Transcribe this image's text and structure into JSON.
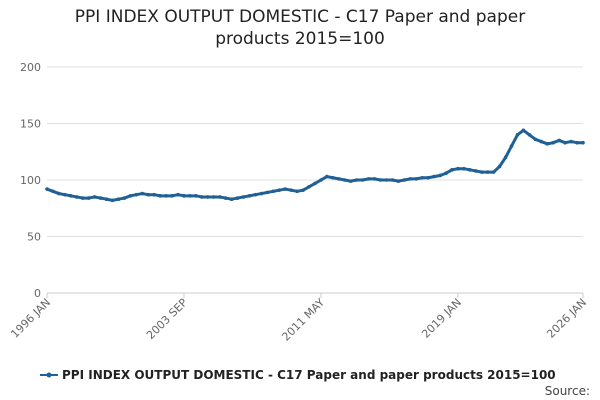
{
  "chart_data": {
    "type": "line",
    "title": "PPI INDEX OUTPUT DOMESTIC - C17 Paper and paper products 2015=100",
    "source": "Source:",
    "categories": [
      "1996 JAN",
      null,
      null,
      null,
      null,
      null,
      null,
      null,
      null,
      null,
      null,
      null,
      null,
      null,
      null,
      null,
      null,
      null,
      null,
      null,
      null,
      null,
      null,
      "2003 SEP",
      null,
      null,
      null,
      null,
      null,
      null,
      null,
      null,
      null,
      null,
      null,
      null,
      null,
      null,
      null,
      null,
      null,
      null,
      null,
      null,
      null,
      null,
      "2011 MAY",
      null,
      null,
      null,
      null,
      null,
      null,
      null,
      null,
      null,
      null,
      null,
      null,
      null,
      null,
      null,
      null,
      null,
      null,
      null,
      null,
      null,
      null,
      "2019 JAN",
      null,
      null,
      null,
      null,
      null,
      null,
      null,
      null,
      null,
      null,
      null,
      null,
      null,
      null,
      null,
      null,
      null,
      null,
      null,
      null,
      "2026 JAN"
    ],
    "series": [
      {
        "name": "PPI INDEX OUTPUT DOMESTIC - C17 Paper and paper products 2015=100",
        "color": "#206095",
        "values": [
          92,
          90,
          88,
          87,
          86,
          85,
          84,
          84,
          85,
          84,
          83,
          82,
          83,
          84,
          86,
          87,
          88,
          87,
          87,
          86,
          86,
          86,
          87,
          86,
          86,
          86,
          85,
          85,
          85,
          85,
          84,
          83,
          84,
          85,
          86,
          87,
          88,
          89,
          90,
          91,
          92,
          91,
          90,
          91,
          94,
          97,
          100,
          103,
          102,
          101,
          100,
          99,
          100,
          100,
          101,
          101,
          100,
          100,
          100,
          99,
          100,
          101,
          101,
          102,
          102,
          103,
          104,
          106,
          109,
          110,
          110,
          109,
          108,
          107,
          107,
          107,
          112,
          120,
          130,
          140,
          144,
          140,
          136,
          134,
          132,
          133,
          135,
          133,
          134,
          133,
          133
        ]
      }
    ],
    "ylim": [
      0,
      200
    ],
    "yticks": [
      0,
      50,
      100,
      150,
      200
    ],
    "grid": true,
    "legend": "bottom"
  }
}
